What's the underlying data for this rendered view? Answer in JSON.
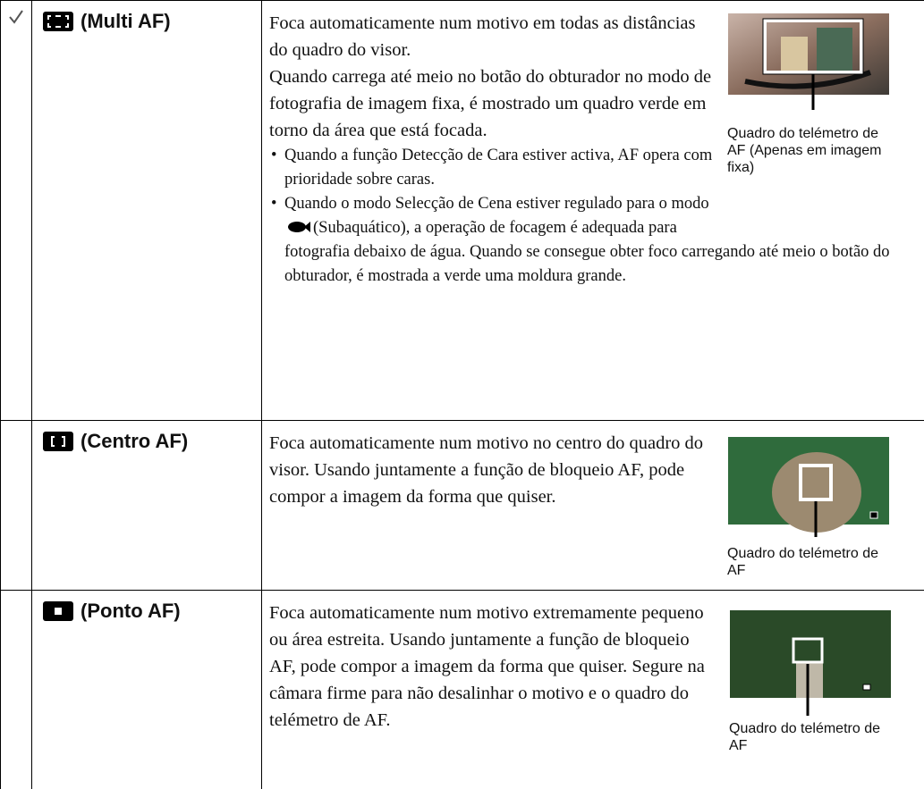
{
  "table": {
    "rows": [
      {
        "name": "(Multi AF)",
        "paragraphs": [
          "Foca automaticamente num motivo em todas as distâncias do quadro do visor.",
          "Quando carrega até meio no botão do obturador no modo de fotografia de imagem fixa, é mostrado um quadro verde em torno da área que está focada."
        ],
        "bullets": [
          [
            "Quando a função Detecção de Cara estiver activa, AF opera com prioridade sobre caras."
          ],
          [
            "Quando o modo Selecção de Cena estiver regulado para o modo",
            "(Subaquático), a operação de focagem é adequada para fotografia debaixo de água. Quando se consegue obter foco carregando até meio o botão do obturador, é mostrada a verde uma moldura grande."
          ]
        ],
        "caption": "Quadro do telémetro de AF (Apenas em imagem fixa)"
      },
      {
        "name": "(Centro AF)",
        "paragraphs": [
          "Foca automaticamente num motivo no centro do quadro do visor. Usando juntamente a função de bloqueio AF, pode compor a imagem da forma que quiser."
        ],
        "bullets": [],
        "caption": "Quadro do telémetro de AF"
      },
      {
        "name": "(Ponto AF)",
        "paragraphs": [
          "Foca automaticamente num motivo extremamente pequeno ou área estreita. Usando juntamente a função de bloqueio AF, pode compor a imagem da forma que quiser. Segure na câmara firme para não desalinhar o motivo e o quadro do telémetro de AF."
        ],
        "bullets": [],
        "caption": "Quadro do telémetro de AF"
      }
    ]
  }
}
